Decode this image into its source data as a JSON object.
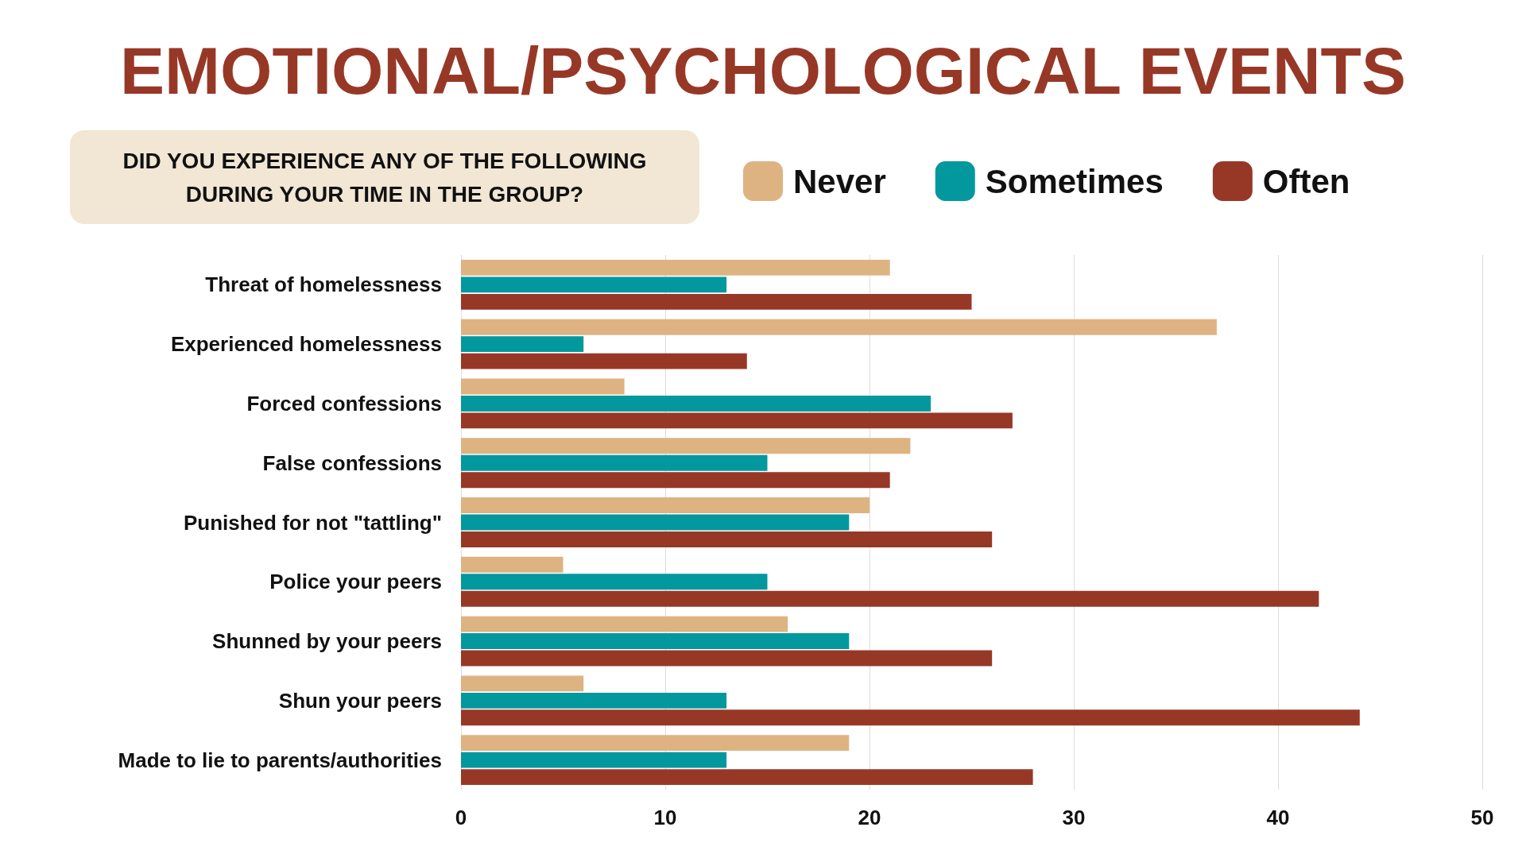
{
  "chart_data": {
    "type": "bar",
    "orientation": "horizontal",
    "title": "EMOTIONAL/PSYCHOLOGICAL EVENTS",
    "subtitle": "DID YOU EXPERIENCE ANY OF THE FOLLOWING\nDURING YOUR TIME IN THE GROUP?",
    "categories": [
      "Threat of homelessness",
      "Experienced homelessness",
      "Forced confessions",
      "False confessions",
      "Punished for not \"tattling\"",
      "Police your peers",
      "Shunned by your peers",
      "Shun your peers",
      "Made to lie to parents/authorities"
    ],
    "series": [
      {
        "name": "Never",
        "color": "#deb382",
        "values": [
          21,
          37,
          8,
          22,
          20,
          5,
          16,
          6,
          19
        ]
      },
      {
        "name": "Sometimes",
        "color": "#03989e",
        "values": [
          13,
          6,
          23,
          15,
          19,
          15,
          19,
          13,
          13
        ]
      },
      {
        "name": "Often",
        "color": "#973827",
        "values": [
          25,
          14,
          27,
          21,
          26,
          42,
          26,
          44,
          28
        ]
      }
    ],
    "xlim": [
      0,
      50
    ],
    "xticks": [
      0,
      10,
      20,
      30,
      40,
      50
    ],
    "grid": "x",
    "legend": "top right"
  }
}
